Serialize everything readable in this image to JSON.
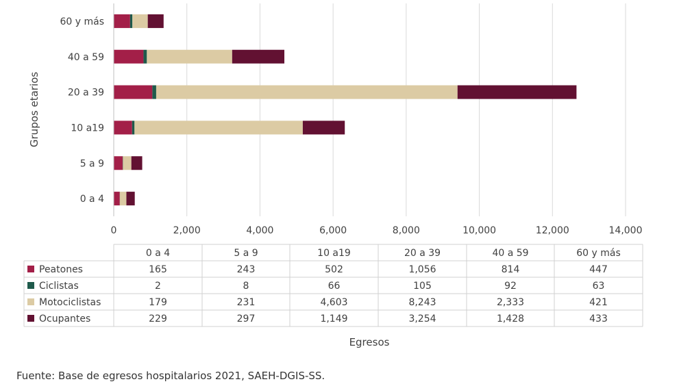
{
  "chart_data": {
    "type": "bar",
    "orientation": "horizontal",
    "stacked": true,
    "categories": [
      "0 a 4",
      "5 a 9",
      "10 a19",
      "20 a 39",
      "40 a 59",
      "60 y más"
    ],
    "series": [
      {
        "name": "Peatones",
        "color": "#a31f48",
        "values": [
          165,
          243,
          502,
          1056,
          814,
          447
        ],
        "labels": [
          "165",
          "243",
          "502",
          "1,056",
          "814",
          "447"
        ]
      },
      {
        "name": "Ciclistas",
        "color": "#1f5a4b",
        "values": [
          2,
          8,
          66,
          105,
          92,
          63
        ],
        "labels": [
          "2",
          "8",
          "66",
          "105",
          "92",
          "63"
        ]
      },
      {
        "name": "Motociclistas",
        "color": "#dccba4",
        "values": [
          179,
          231,
          4603,
          8243,
          2333,
          421
        ],
        "labels": [
          "179",
          "231",
          "4,603",
          "8,243",
          "2,333",
          "421"
        ]
      },
      {
        "name": "Ocupantes",
        "color": "#621132",
        "values": [
          229,
          297,
          1149,
          3254,
          1428,
          433
        ],
        "labels": [
          "229",
          "297",
          "1,149",
          "3,254",
          "1,428",
          "433"
        ]
      }
    ],
    "xlim": [
      0,
      14000
    ],
    "xticks": [
      "0",
      "2,000",
      "4,000",
      "6,000",
      "8,000",
      "10,000",
      "12,000",
      "14,000"
    ],
    "xlabel": "Egresos",
    "ylabel": "Grupos etarios",
    "grid": "vertical",
    "legend": "data-table-below"
  },
  "source": "Fuente: Base de egresos hospitalarios 2021, SAEH-DGIS-SS."
}
